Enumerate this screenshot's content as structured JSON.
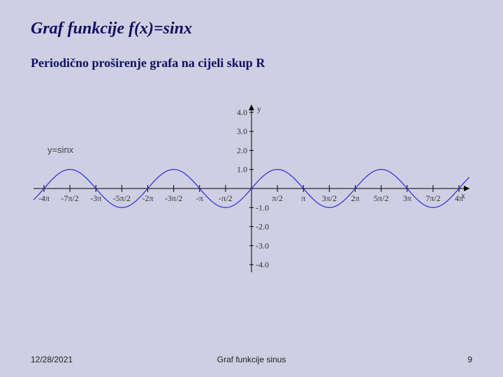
{
  "title": "Graf funkcije f(x)=sinx",
  "subtitle": "Periodično proširenje grafa na cijeli skup R",
  "series_label": "y=sinx",
  "footer": {
    "date": "12/28/2021",
    "center": "Graf funkcije sinus",
    "page": "9"
  },
  "chart": {
    "type": "line",
    "function": "sin",
    "curve_color": "#2a2ae0",
    "axis_color": "#000000",
    "background_color": "#cecfe3",
    "grid": false,
    "line_width": 1.2,
    "xlim": [
      -13.2,
      13.2
    ],
    "ylim": [
      -4.4,
      4.4
    ],
    "x_tick_step_halfpi": 1,
    "y_ticks": [
      -4,
      -3,
      -2,
      -1,
      1,
      2,
      3,
      4
    ],
    "y_tick_labels": [
      "-4.0",
      "-3.0",
      "-2.0",
      "-1.0",
      "1.0",
      "2.0",
      "3.0",
      "4.0"
    ],
    "x_tick_labels_tex": [
      "-4\\pi",
      "-7\\pi/2",
      "-3\\pi",
      "-5\\pi/2",
      "-2\\pi",
      "-3\\pi/2",
      "-\\pi",
      "-\\pi/2",
      "\\pi/2",
      "\\pi",
      "3\\pi/2",
      "2\\pi",
      "5\\pi/2",
      "3\\pi",
      "7\\pi/2",
      "4\\pi"
    ],
    "axis_labels": {
      "x": "x",
      "y": "y"
    },
    "tick_fontsize": 11,
    "label_fontsize": 12,
    "amplitude": 1,
    "period": 6.2832
  }
}
